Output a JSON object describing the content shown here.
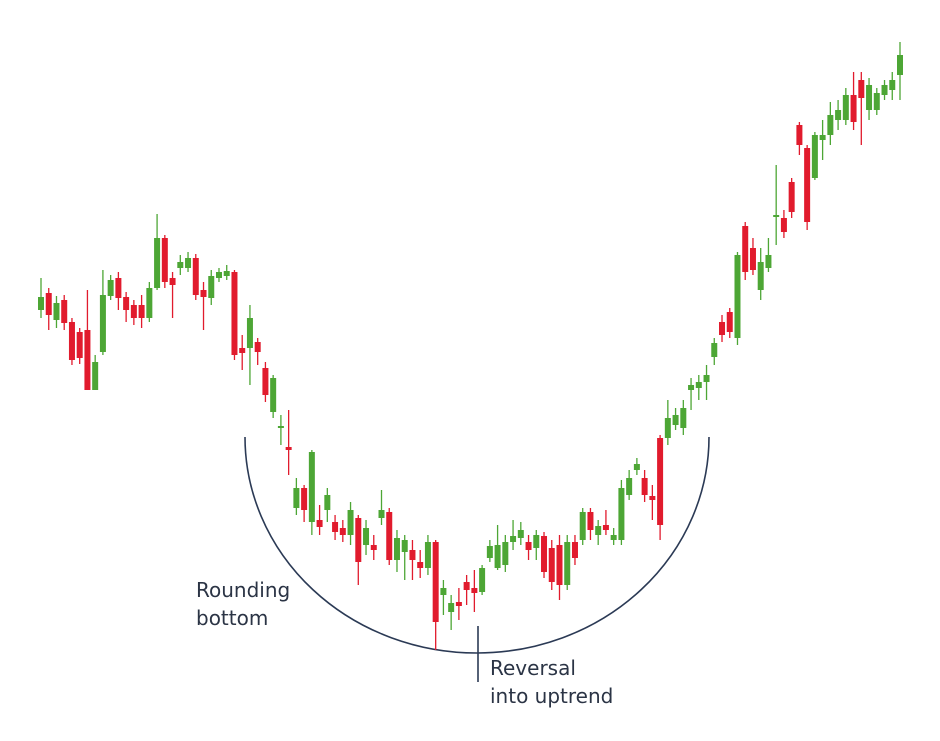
{
  "chart_data": {
    "type": "candlestick",
    "annotations": {
      "left": [
        "Rounding",
        "bottom"
      ],
      "bottom": [
        "Reversal",
        "into uptrend"
      ]
    },
    "up_color": "#4da635",
    "down_color": "#e11b2d",
    "ylim": [
      0,
      700
    ],
    "open": [
      390,
      407,
      380,
      400,
      378,
      368,
      370,
      310,
      348,
      404,
      422,
      403,
      395,
      395,
      382,
      412,
      462,
      422,
      432,
      432,
      442,
      410,
      402,
      422,
      424,
      428,
      352,
      352,
      358,
      332,
      288,
      272,
      253,
      192,
      212,
      178,
      180,
      190,
      178,
      172,
      165,
      182,
      155,
      155,
      182,
      188,
      140,
      148,
      150,
      138,
      132,
      158,
      105,
      88,
      98,
      118,
      112,
      108,
      142,
      132,
      135,
      158,
      162,
      158,
      152,
      164,
      152,
      155,
      115,
      158,
      160,
      188,
      165,
      175,
      160,
      160,
      205,
      230,
      222,
      204,
      262,
      262,
      275,
      272,
      310,
      312,
      318,
      343,
      378,
      388,
      362,
      474,
      452,
      410,
      432,
      483,
      482,
      518,
      575,
      552,
      522,
      560,
      565,
      580,
      580,
      605,
      620,
      590,
      590,
      605,
      610,
      625
    ],
    "high": [
      422,
      412,
      404,
      405,
      382,
      372,
      410,
      345,
      430,
      425,
      428,
      408,
      400,
      405,
      418,
      486,
      465,
      428,
      445,
      448,
      446,
      418,
      430,
      432,
      435,
      430,
      365,
      395,
      362,
      338,
      325,
      285,
      290,
      222,
      215,
      250,
      195,
      212,
      185,
      180,
      198,
      185,
      180,
      165,
      210,
      192,
      170,
      165,
      160,
      150,
      165,
      160,
      120,
      105,
      112,
      125,
      130,
      135,
      160,
      175,
      165,
      180,
      178,
      165,
      170,
      168,
      160,
      165,
      165,
      165,
      192,
      192,
      180,
      190,
      172,
      220,
      230,
      242,
      230,
      215,
      265,
      300,
      292,
      300,
      322,
      325,
      335,
      362,
      385,
      392,
      448,
      478,
      462,
      452,
      462,
      535,
      490,
      522,
      578,
      555,
      568,
      580,
      598,
      600,
      612,
      628,
      628,
      622,
      612,
      620,
      628,
      658
    ],
    "low": [
      382,
      370,
      372,
      370,
      335,
      336,
      310,
      310,
      345,
      400,
      390,
      378,
      375,
      372,
      378,
      410,
      412,
      382,
      425,
      428,
      400,
      370,
      395,
      418,
      420,
      340,
      330,
      315,
      335,
      298,
      282,
      255,
      225,
      185,
      178,
      165,
      165,
      178,
      160,
      158,
      155,
      115,
      145,
      140,
      175,
      135,
      128,
      120,
      120,
      122,
      125,
      50,
      85,
      70,
      80,
      95,
      88,
      105,
      138,
      130,
      128,
      150,
      155,
      140,
      140,
      122,
      110,
      100,
      110,
      135,
      155,
      160,
      155,
      165,
      155,
      155,
      200,
      225,
      198,
      180,
      160,
      255,
      270,
      265,
      290,
      300,
      300,
      335,
      358,
      362,
      355,
      420,
      425,
      400,
      428,
      455,
      462,
      482,
      545,
      470,
      520,
      540,
      555,
      570,
      575,
      570,
      555,
      580,
      585,
      600,
      600,
      600
    ],
    "close": [
      403,
      385,
      397,
      377,
      340,
      342,
      310,
      338,
      405,
      420,
      402,
      390,
      382,
      382,
      412,
      462,
      418,
      415,
      438,
      442,
      405,
      403,
      424,
      428,
      429,
      345,
      347,
      382,
      348,
      305,
      322,
      274,
      250,
      212,
      190,
      248,
      173,
      205,
      168,
      165,
      190,
      138,
      172,
      150,
      190,
      140,
      162,
      160,
      140,
      132,
      158,
      78,
      112,
      97,
      94,
      110,
      107,
      132,
      154,
      155,
      158,
      164,
      170,
      150,
      165,
      128,
      118,
      115,
      158,
      142,
      188,
      170,
      174,
      170,
      165,
      212,
      222,
      236,
      205,
      200,
      175,
      282,
      285,
      292,
      315,
      318,
      325,
      357,
      365,
      368,
      445,
      428,
      430,
      438,
      445,
      485,
      468,
      488,
      555,
      478,
      565,
      565,
      585,
      590,
      605,
      578,
      602,
      615,
      607,
      615,
      620,
      645
    ]
  }
}
